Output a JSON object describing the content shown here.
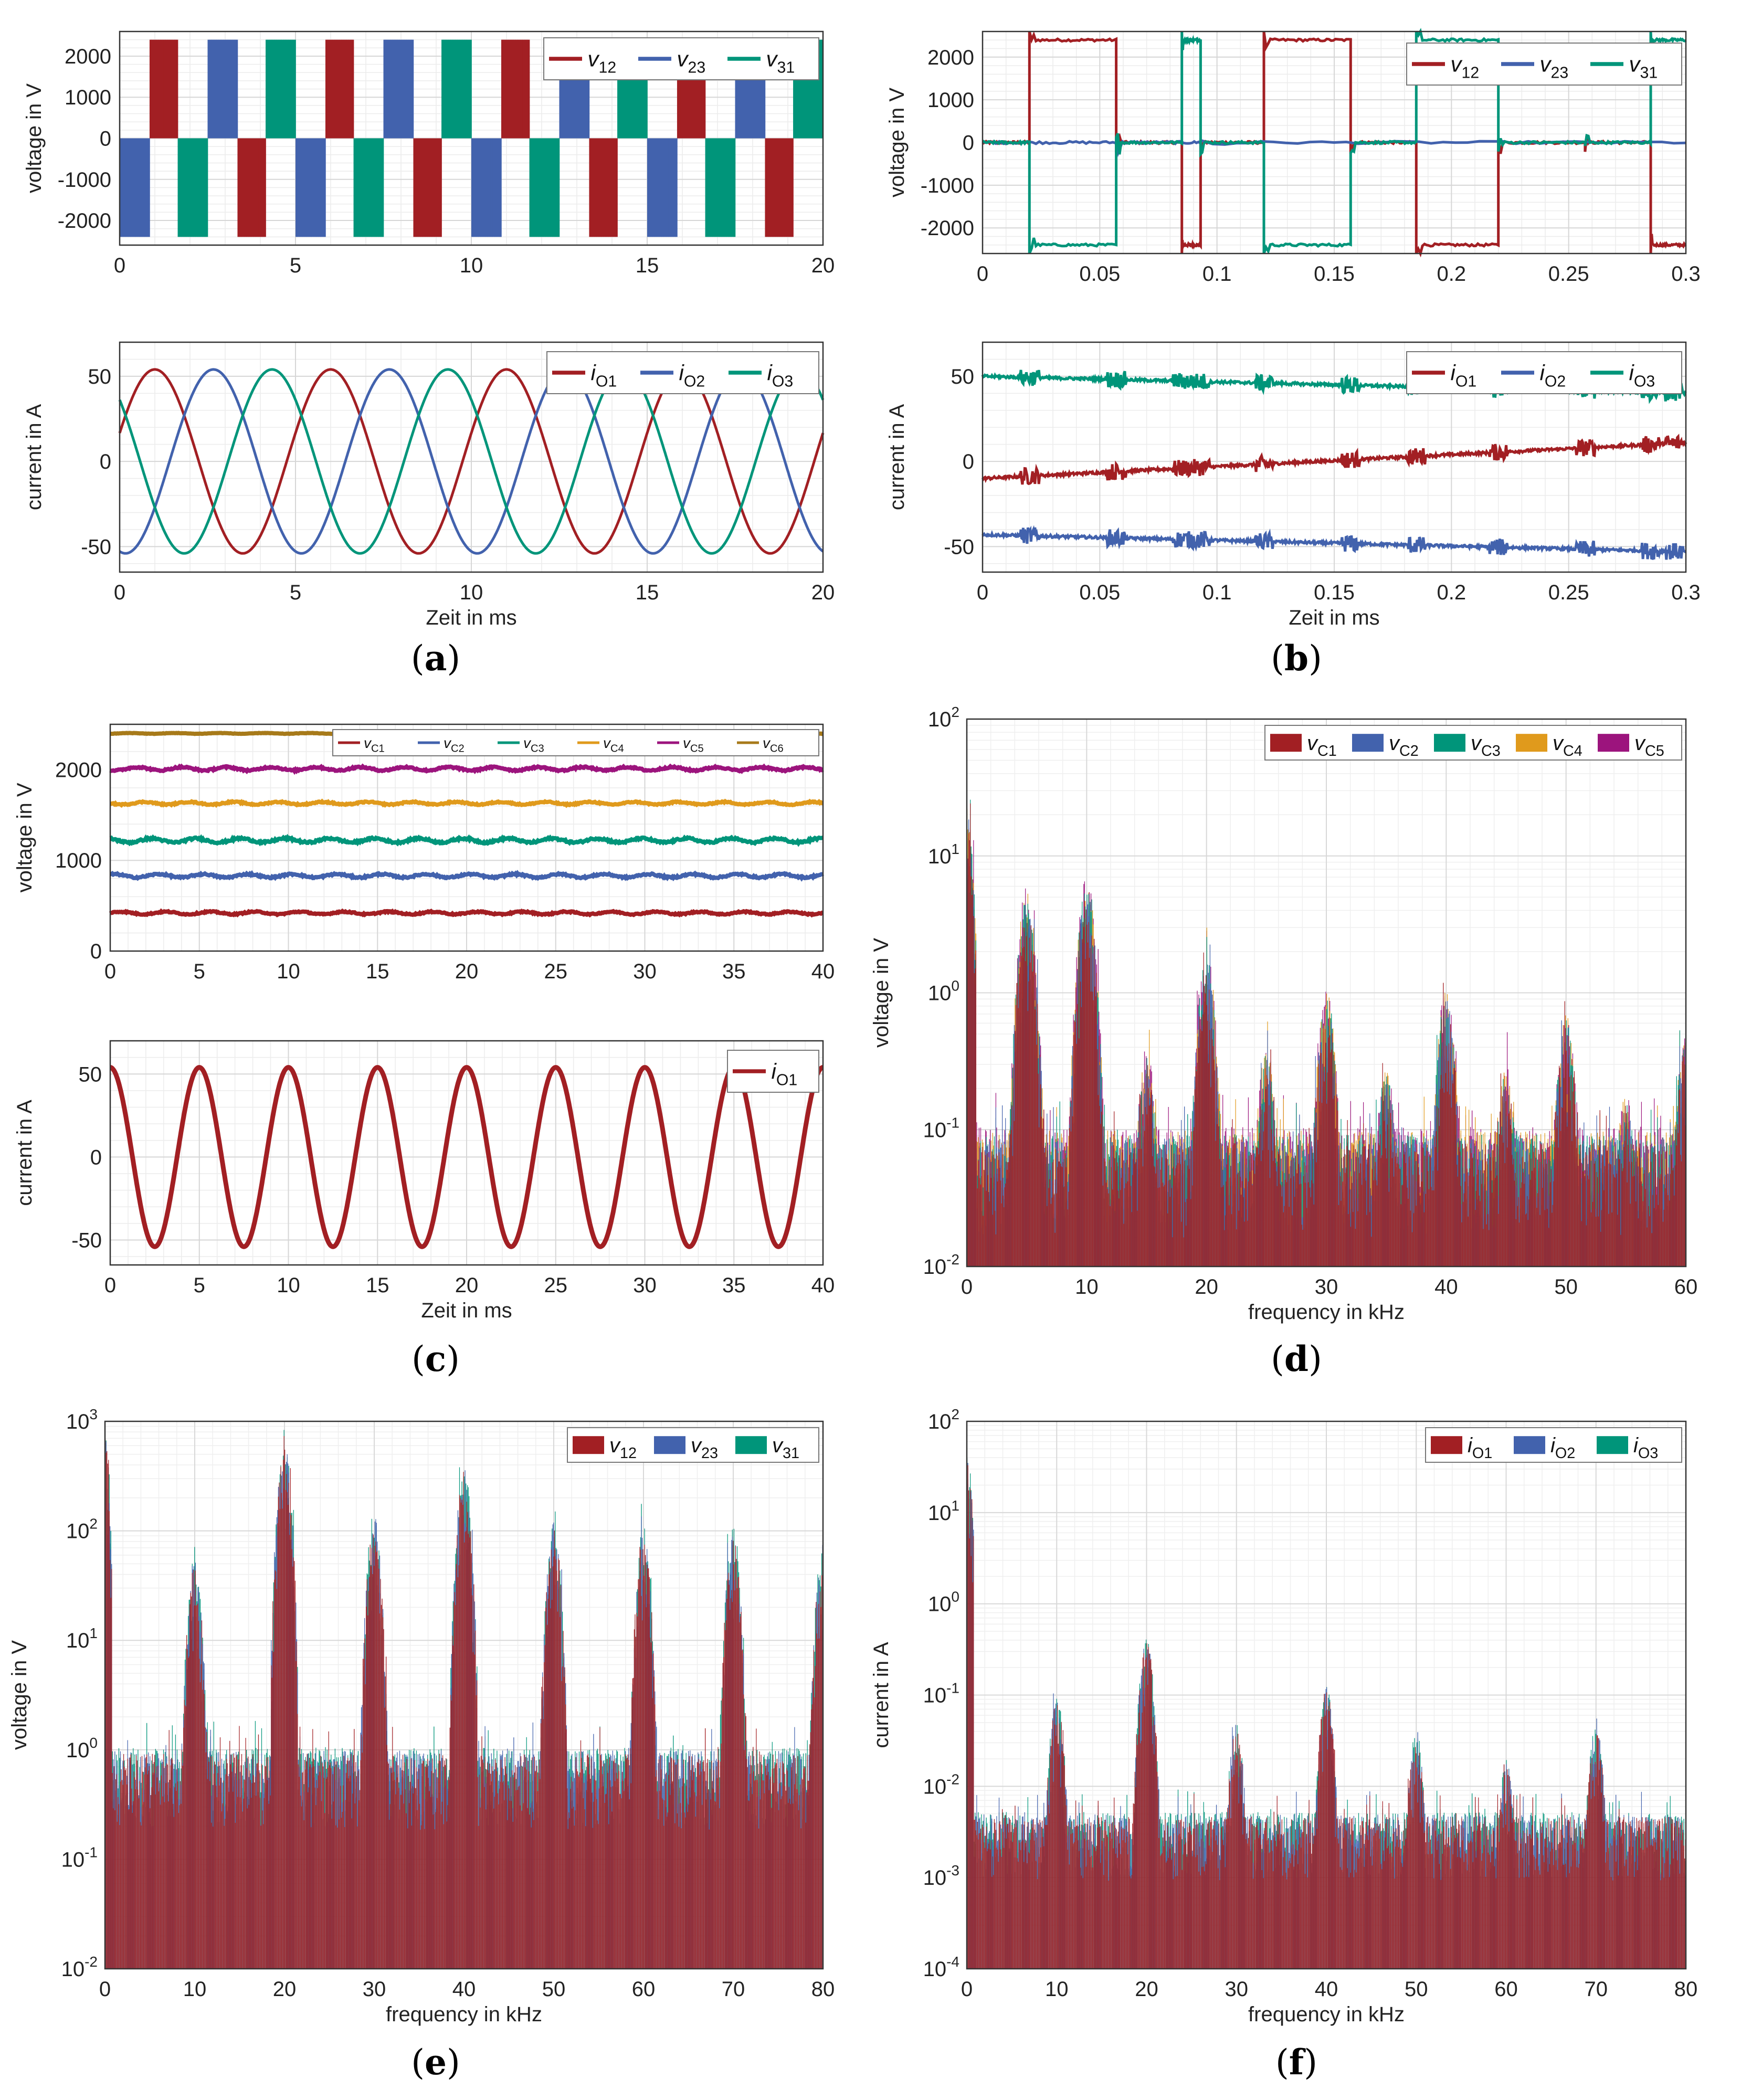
{
  "colors": {
    "red": "#a21f23",
    "blue": "#4262ad",
    "green": "#00957a",
    "orange": "#e09a1c",
    "magenta": "#9c147d",
    "olive": "#a77a1a"
  },
  "captions": {
    "a": "a",
    "b": "b",
    "c": "c",
    "d": "d",
    "e": "e",
    "f": "f"
  },
  "chart_data": [
    {
      "id": "a-top",
      "type": "line",
      "description_note": "three-phase output line voltages, multilevel PWM blocks",
      "ylabel": "voltage in V",
      "xlabel": "",
      "xlim": [
        0,
        20
      ],
      "ylim": [
        -2600,
        2600
      ],
      "xticks": [
        0,
        5,
        10,
        15,
        20
      ],
      "yticks": [
        -2000,
        -1000,
        0,
        1000,
        2000
      ],
      "ytick_labels": [
        "-2000",
        "-1000",
        "0",
        "1000",
        "2000"
      ],
      "fundamental_hz": 200,
      "switching_khz": 10,
      "amplitude": 2400,
      "series": [
        {
          "name": "v12",
          "base": "v",
          "sub": "12",
          "color": "red",
          "phase_deg": 0
        },
        {
          "name": "v23",
          "base": "v",
          "sub": "23",
          "color": "blue",
          "phase_deg": -120
        },
        {
          "name": "v31",
          "base": "v",
          "sub": "31",
          "color": "green",
          "phase_deg": 120
        }
      ]
    },
    {
      "id": "a-bottom",
      "type": "line",
      "ylabel": "current in A",
      "xlabel": "Zeit in ms",
      "xlim": [
        0,
        20
      ],
      "ylim": [
        -65,
        70
      ],
      "xticks": [
        0,
        5,
        10,
        15,
        20
      ],
      "yticks": [
        -50,
        0,
        50
      ],
      "ytick_labels": [
        "-50",
        "0",
        "50"
      ],
      "fundamental_hz": 200,
      "amplitude": 54,
      "series": [
        {
          "name": "iO1",
          "base": "i",
          "sub": "O1",
          "color": "red",
          "phase_deg": 18
        },
        {
          "name": "iO2",
          "base": "i",
          "sub": "O2",
          "color": "blue",
          "phase_deg": -102
        },
        {
          "name": "iO3",
          "base": "i",
          "sub": "O3",
          "color": "green",
          "phase_deg": 138
        }
      ]
    },
    {
      "id": "b-top",
      "type": "line",
      "ylabel": "voltage in V",
      "xlabel": "",
      "xlim": [
        0,
        0.3
      ],
      "ylim": [
        -2600,
        2600
      ],
      "xticks": [
        0,
        0.05,
        0.1,
        0.15,
        0.2,
        0.25,
        0.3
      ],
      "yticks": [
        -2000,
        -1000,
        0,
        1000,
        2000
      ],
      "ytick_labels": [
        "-2000",
        "-1000",
        "0",
        "1000",
        "2000"
      ],
      "series": [
        {
          "name": "v12",
          "base": "v",
          "sub": "12",
          "color": "red",
          "segments": [
            [
              0,
              0.02,
              0
            ],
            [
              0.02,
              0.057,
              2400
            ],
            [
              0.057,
              0.085,
              0
            ],
            [
              0.085,
              0.093,
              -2400
            ],
            [
              0.093,
              0.12,
              0
            ],
            [
              0.12,
              0.157,
              2400
            ],
            [
              0.157,
              0.185,
              0
            ],
            [
              0.185,
              0.22,
              -2400
            ],
            [
              0.22,
              0.257,
              0
            ],
            [
              0.257,
              0.285,
              0
            ],
            [
              0.285,
              0.3,
              -2400
            ]
          ]
        },
        {
          "name": "v23",
          "base": "v",
          "sub": "23",
          "color": "blue",
          "segments": [
            [
              0,
              0.057,
              0
            ],
            [
              0.057,
              0.093,
              0
            ],
            [
              0.093,
              0.3,
              0
            ]
          ]
        },
        {
          "name": "v31",
          "base": "v",
          "sub": "31",
          "color": "green",
          "segments": [
            [
              0,
              0.02,
              0
            ],
            [
              0.02,
              0.057,
              -2400
            ],
            [
              0.057,
              0.085,
              0
            ],
            [
              0.085,
              0.093,
              2400
            ],
            [
              0.093,
              0.12,
              0
            ],
            [
              0.12,
              0.157,
              -2400
            ],
            [
              0.157,
              0.185,
              0
            ],
            [
              0.185,
              0.22,
              2400
            ],
            [
              0.22,
              0.257,
              0
            ],
            [
              0.257,
              0.285,
              0
            ],
            [
              0.285,
              0.3,
              2400
            ]
          ]
        }
      ]
    },
    {
      "id": "b-bottom",
      "type": "line",
      "ylabel": "current in A",
      "xlabel": "Zeit in ms",
      "xlim": [
        0,
        0.3
      ],
      "ylim": [
        -65,
        70
      ],
      "xticks": [
        0,
        0.05,
        0.1,
        0.15,
        0.2,
        0.25,
        0.3
      ],
      "yticks": [
        -50,
        0,
        50
      ],
      "ytick_labels": [
        "-50",
        "0",
        "50"
      ],
      "series": [
        {
          "name": "iO1",
          "base": "i",
          "sub": "O1",
          "color": "red",
          "start": -10,
          "end": 11
        },
        {
          "name": "iO2",
          "base": "i",
          "sub": "O2",
          "color": "blue",
          "start": -43,
          "end": -53
        },
        {
          "name": "iO3",
          "base": "i",
          "sub": "O3",
          "color": "green",
          "start": 50,
          "end": 40
        }
      ]
    },
    {
      "id": "c-top",
      "type": "line",
      "ylabel": "voltage in V",
      "xlabel": "",
      "xlim": [
        0,
        40
      ],
      "ylim": [
        0,
        2500
      ],
      "xticks": [
        0,
        5,
        10,
        15,
        20,
        25,
        30,
        35,
        40
      ],
      "yticks": [
        0,
        1000,
        2000
      ],
      "ytick_labels": [
        "0",
        "1000",
        "2000"
      ],
      "series": [
        {
          "name": "vC1",
          "base": "v",
          "sub": "C1",
          "color": "red",
          "level": 420
        },
        {
          "name": "vC2",
          "base": "v",
          "sub": "C2",
          "color": "blue",
          "level": 830
        },
        {
          "name": "vC3",
          "base": "v",
          "sub": "C3",
          "color": "green",
          "level": 1220
        },
        {
          "name": "vC4",
          "base": "v",
          "sub": "C4",
          "color": "orange",
          "level": 1630
        },
        {
          "name": "vC5",
          "base": "v",
          "sub": "C5",
          "color": "magenta",
          "level": 2010
        },
        {
          "name": "vC6",
          "base": "v",
          "sub": "C6",
          "color": "olive",
          "level": 2400
        }
      ]
    },
    {
      "id": "c-bottom",
      "type": "line",
      "ylabel": "current in A",
      "xlabel": "Zeit in ms",
      "xlim": [
        0,
        40
      ],
      "ylim": [
        -65,
        70
      ],
      "xticks": [
        0,
        5,
        10,
        15,
        20,
        25,
        30,
        35,
        40
      ],
      "yticks": [
        -50,
        0,
        50
      ],
      "ytick_labels": [
        "-50",
        "0",
        "50"
      ],
      "fundamental_hz": 200,
      "amplitude": 54,
      "series": [
        {
          "name": "iO1",
          "base": "i",
          "sub": "O1",
          "color": "red",
          "phase_deg": 90
        }
      ]
    },
    {
      "id": "d",
      "type": "bar",
      "scale": "log",
      "ylabel": "voltage in V",
      "xlabel": "frequency in kHz",
      "xlim": [
        0,
        60
      ],
      "ylim": [
        0.01,
        100
      ],
      "xticks": [
        0,
        10,
        20,
        30,
        40,
        50,
        60
      ],
      "ydecades": [
        -2,
        -1,
        0,
        1,
        2
      ],
      "peaks_khz": [
        0,
        5,
        10,
        15,
        20,
        25,
        30,
        35,
        40,
        45,
        50,
        55,
        60
      ],
      "peak_values": [
        25,
        6,
        7,
        0.4,
        2.1,
        0.4,
        1.1,
        0.3,
        1.1,
        0.3,
        0.75,
        0.2,
        0.6
      ],
      "floor": 0.06,
      "series": [
        {
          "name": "vC1",
          "base": "v",
          "sub": "C1",
          "color": "red"
        },
        {
          "name": "vC2",
          "base": "v",
          "sub": "C2",
          "color": "blue"
        },
        {
          "name": "vC3",
          "base": "v",
          "sub": "C3",
          "color": "green"
        },
        {
          "name": "vC4",
          "base": "v",
          "sub": "C4",
          "color": "orange"
        },
        {
          "name": "vC5",
          "base": "v",
          "sub": "C5",
          "color": "magenta"
        }
      ]
    },
    {
      "id": "e",
      "type": "bar",
      "scale": "log",
      "ylabel": "voltage in V",
      "xlabel": "frequency in kHz",
      "xlim": [
        0,
        80
      ],
      "ylim": [
        0.01,
        1000
      ],
      "xticks": [
        0,
        10,
        20,
        30,
        40,
        50,
        60,
        70,
        80
      ],
      "ydecades": [
        -2,
        -1,
        0,
        1,
        2,
        3
      ],
      "peaks_khz": [
        0,
        10,
        20,
        30,
        40,
        50,
        60,
        70,
        80
      ],
      "peak_values": [
        800,
        60,
        650,
        150,
        400,
        130,
        110,
        110,
        80
      ],
      "floor": 0.6,
      "series": [
        {
          "name": "v12",
          "base": "v",
          "sub": "12",
          "color": "red"
        },
        {
          "name": "v23",
          "base": "v",
          "sub": "23",
          "color": "blue"
        },
        {
          "name": "v31",
          "base": "v",
          "sub": "31",
          "color": "green"
        }
      ]
    },
    {
      "id": "f",
      "type": "bar",
      "scale": "log",
      "ylabel": "current in A",
      "xlabel": "frequency in kHz",
      "xlim": [
        0,
        80
      ],
      "ylim": [
        0.0001,
        100
      ],
      "xticks": [
        0,
        10,
        20,
        30,
        40,
        50,
        60,
        70,
        80
      ],
      "ydecades": [
        -4,
        -3,
        -2,
        -1,
        0,
        1,
        2
      ],
      "peaks_khz": [
        0,
        10,
        20,
        30,
        40,
        50,
        60,
        70
      ],
      "peak_values": [
        55,
        0.1,
        0.45,
        0.05,
        0.13,
        0.04,
        0.02,
        0.05
      ],
      "floor": 0.003,
      "series": [
        {
          "name": "iO1",
          "base": "i",
          "sub": "O1",
          "color": "red"
        },
        {
          "name": "iO2",
          "base": "i",
          "sub": "O2",
          "color": "blue"
        },
        {
          "name": "iO3",
          "base": "i",
          "sub": "O3",
          "color": "green"
        }
      ]
    }
  ]
}
